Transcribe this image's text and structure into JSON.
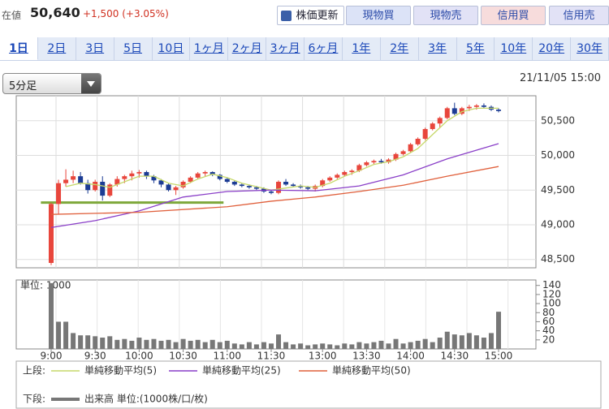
{
  "header": {
    "label": "在値",
    "price": "50,640",
    "change": "+1,500 (+3.05%)"
  },
  "buttons": [
    "株価更新",
    "現物買",
    "現物売",
    "信用買",
    "信用売"
  ],
  "tabs": [
    "1日",
    "2日",
    "3日",
    "5日",
    "10日",
    "1ヶ月",
    "2ヶ月",
    "3ヶ月",
    "6ヶ月",
    "1年",
    "2年",
    "3年",
    "5年",
    "10年",
    "20年",
    "30年"
  ],
  "selected_tab": 0,
  "interval": "5分足",
  "timestamp": "21/11/05 15:00",
  "legend": {
    "upper": "上段:",
    "lower": "下段:"
  },
  "chart_data": [
    {
      "type": "candlestick",
      "up_color": "#e8463c",
      "down_color": "#1c3c94",
      "ylim": [
        48380,
        50860
      ],
      "yticks": [
        {
          "value": 48500,
          "label": "48,500"
        },
        {
          "value": 49000,
          "label": "49,000"
        },
        {
          "value": 49500,
          "label": "49,500"
        },
        {
          "value": 50000,
          "label": "50,000"
        },
        {
          "value": 50500,
          "label": "50,500"
        }
      ],
      "grid": true,
      "open": [
        48450,
        49300,
        49600,
        49650,
        49700,
        49600,
        49500,
        49620,
        49420,
        49580,
        49660,
        49700,
        49740,
        49760,
        49700,
        49640,
        49580,
        49500,
        49540,
        49620,
        49680,
        49740,
        49760,
        49720,
        49660,
        49620,
        49580,
        49560,
        49540,
        49520,
        49480,
        49460,
        49620,
        49580,
        49560,
        49540,
        49520,
        49560,
        49640,
        49680,
        49720,
        49760,
        49780,
        49860,
        49900,
        49920,
        49900,
        49940,
        50020,
        50060,
        50160,
        50240,
        50380,
        50460,
        50540,
        50680,
        50600,
        50680,
        50700,
        50720,
        50700,
        50660
      ],
      "high": [
        49320,
        49650,
        49800,
        49780,
        49760,
        49650,
        49650,
        49700,
        49600,
        49700,
        49720,
        49780,
        49790,
        49780,
        49720,
        49660,
        49600,
        49560,
        49640,
        49700,
        49760,
        49780,
        49770,
        49730,
        49680,
        49640,
        49600,
        49580,
        49560,
        49540,
        49500,
        49640,
        49660,
        49600,
        49580,
        49560,
        49580,
        49660,
        49700,
        49740,
        49780,
        49800,
        49880,
        49920,
        49940,
        49950,
        49960,
        50040,
        50080,
        50180,
        50260,
        50400,
        50480,
        50560,
        50700,
        50760,
        50700,
        50730,
        50740,
        50750,
        50720,
        50680
      ],
      "low": [
        48420,
        49150,
        49550,
        49600,
        49580,
        49450,
        49480,
        49350,
        49400,
        49550,
        49600,
        49640,
        49680,
        49660,
        49600,
        49540,
        49480,
        49430,
        49520,
        49600,
        49660,
        49700,
        49700,
        49640,
        49600,
        49560,
        49540,
        49520,
        49500,
        49460,
        49440,
        49440,
        49560,
        49540,
        49520,
        49500,
        49480,
        49540,
        49620,
        49660,
        49700,
        49720,
        49760,
        49840,
        49870,
        49880,
        49880,
        49920,
        50000,
        50040,
        50140,
        50220,
        50360,
        50400,
        50520,
        50580,
        50580,
        50640,
        50660,
        50680,
        50640,
        50620
      ],
      "close": [
        49300,
        49600,
        49650,
        49700,
        49600,
        49500,
        49620,
        49420,
        49580,
        49660,
        49700,
        49740,
        49760,
        49700,
        49640,
        49580,
        49500,
        49540,
        49620,
        49680,
        49740,
        49760,
        49720,
        49660,
        49620,
        49580,
        49560,
        49540,
        49520,
        49480,
        49460,
        49620,
        49580,
        49560,
        49540,
        49520,
        49560,
        49640,
        49680,
        49720,
        49760,
        49780,
        49860,
        49900,
        49920,
        49900,
        49940,
        50020,
        50060,
        50160,
        50240,
        50380,
        50460,
        50540,
        50680,
        50600,
        50680,
        50700,
        50720,
        50700,
        50660,
        50640
      ],
      "reference_line": {
        "value": 49320,
        "color": "#7ea83a",
        "xrange": [
          -1.4,
          23.5
        ]
      },
      "series": [
        {
          "name": "単純移動平均(5)",
          "color": "#c6d86a",
          "x": [
            2,
            4,
            6,
            8,
            10,
            12,
            14,
            16,
            18,
            20,
            22,
            24,
            26,
            28,
            30,
            32,
            34,
            36,
            38,
            40,
            42,
            44,
            46,
            48,
            50,
            52,
            54,
            56,
            58,
            61
          ],
          "values": [
            49550,
            49600,
            49580,
            49540,
            49620,
            49700,
            49700,
            49600,
            49560,
            49660,
            49730,
            49680,
            49600,
            49550,
            49500,
            49530,
            49560,
            49540,
            49600,
            49700,
            49780,
            49870,
            49910,
            49980,
            50100,
            50300,
            50500,
            50630,
            50680,
            50680
          ]
        },
        {
          "name": "単純移動平均(25)",
          "color": "#8a3fc8",
          "x": [
            0,
            6,
            12,
            18,
            24,
            30,
            36,
            42,
            48,
            54,
            61
          ],
          "values": [
            48960,
            49060,
            49200,
            49400,
            49480,
            49500,
            49490,
            49560,
            49720,
            49950,
            50170
          ]
        },
        {
          "name": "単純移動平均(50)",
          "color": "#e0603c",
          "x": [
            0,
            12,
            24,
            30,
            36,
            42,
            48,
            54,
            61
          ],
          "values": [
            49150,
            49180,
            49260,
            49340,
            49400,
            49480,
            49570,
            49700,
            49840
          ]
        }
      ]
    },
    {
      "type": "bar",
      "unit_label": "単位: 1000",
      "ylim": [
        0,
        152
      ],
      "yticks": [
        20,
        40,
        60,
        80,
        100,
        120,
        140
      ],
      "categories": [
        "9:00",
        null,
        null,
        null,
        null,
        null,
        "9:30",
        null,
        null,
        null,
        null,
        null,
        "10:00",
        null,
        null,
        null,
        null,
        null,
        "10:30",
        null,
        null,
        null,
        null,
        null,
        "11:00",
        null,
        null,
        null,
        null,
        null,
        "11:30",
        null,
        null,
        null,
        null,
        null,
        null,
        "13:00",
        null,
        null,
        null,
        null,
        null,
        "13:30",
        null,
        null,
        null,
        null,
        null,
        "14:00",
        null,
        null,
        null,
        null,
        null,
        "14:30",
        null,
        null,
        null,
        null,
        null,
        "15:00"
      ],
      "series": [
        {
          "name": "出来高 単位:(1000株/口/枚)",
          "color": "#777777",
          "values": [
            145,
            60,
            60,
            35,
            30,
            30,
            28,
            25,
            28,
            20,
            22,
            18,
            25,
            20,
            22,
            18,
            20,
            15,
            22,
            18,
            20,
            15,
            20,
            15,
            18,
            12,
            10,
            15,
            10,
            15,
            12,
            32,
            15,
            10,
            12,
            8,
            10,
            12,
            10,
            8,
            12,
            10,
            15,
            12,
            15,
            18,
            12,
            22,
            12,
            15,
            18,
            22,
            15,
            25,
            38,
            32,
            30,
            35,
            30,
            25,
            35,
            82
          ]
        }
      ]
    }
  ]
}
